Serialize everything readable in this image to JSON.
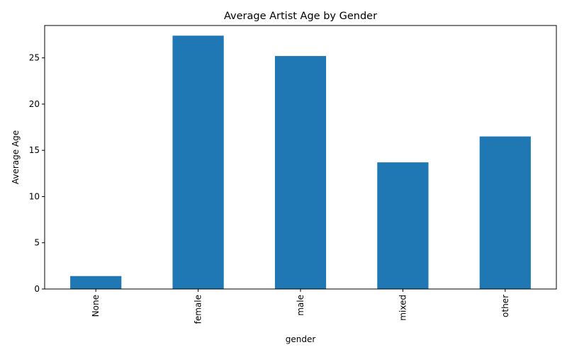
{
  "chart_data": {
    "type": "bar",
    "title": "Average Artist Age by Gender",
    "xlabel": "gender",
    "ylabel": "Average Age",
    "categories": [
      "None",
      "female",
      "male",
      "mixed",
      "other"
    ],
    "values": [
      1.4,
      27.4,
      25.2,
      13.7,
      16.5
    ],
    "ylim": [
      0,
      28.5
    ],
    "yticks": [
      0,
      5,
      10,
      15,
      20,
      25
    ],
    "bar_color": "#1f77b4",
    "grid": false,
    "legend": "none"
  }
}
